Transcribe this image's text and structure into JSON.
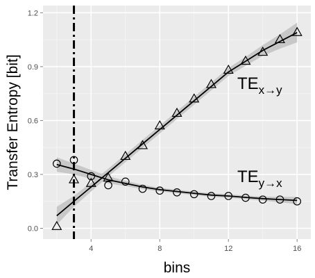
{
  "chart_data": {
    "type": "scatter",
    "xlabel": "bins",
    "ylabel": "Transfer Entropy [bit]",
    "xlim": [
      1.2,
      16.8
    ],
    "ylim": [
      -0.06,
      1.24
    ],
    "xticks": [
      4,
      8,
      12,
      16
    ],
    "yticks": [
      0.0,
      0.3,
      0.6,
      0.9,
      1.2
    ],
    "grid": true,
    "background": "#ebebeb",
    "band_color": "#c8c8c8",
    "vline": {
      "x": 3,
      "style": "dash-dot"
    },
    "series": [
      {
        "name_base": "TE",
        "name_sub": "x→y",
        "marker": "triangle",
        "points": [
          [
            2,
            0.01
          ],
          [
            3,
            0.27
          ],
          [
            4,
            0.25
          ],
          [
            5,
            0.28
          ],
          [
            6,
            0.4
          ],
          [
            7,
            0.46
          ],
          [
            8,
            0.57
          ],
          [
            9,
            0.64
          ],
          [
            10,
            0.72
          ],
          [
            11,
            0.8
          ],
          [
            12,
            0.88
          ],
          [
            13,
            0.93
          ],
          [
            14,
            0.98
          ],
          [
            15,
            1.05
          ],
          [
            16,
            1.09
          ]
        ],
        "smooth": [
          [
            2,
            0.07
          ],
          [
            3,
            0.15
          ],
          [
            4,
            0.23
          ],
          [
            5,
            0.31
          ],
          [
            6,
            0.39
          ],
          [
            7,
            0.47
          ],
          [
            8,
            0.55
          ],
          [
            9,
            0.63
          ],
          [
            10,
            0.71
          ],
          [
            11,
            0.79
          ],
          [
            12,
            0.87
          ],
          [
            13,
            0.93
          ],
          [
            14,
            0.99
          ],
          [
            15,
            1.04
          ],
          [
            16,
            1.09
          ]
        ],
        "band_width": [
          0.05,
          0.03,
          0.025,
          0.022,
          0.022,
          0.022,
          0.022,
          0.022,
          0.022,
          0.022,
          0.022,
          0.025,
          0.03,
          0.04,
          0.055
        ]
      },
      {
        "name_base": "TE",
        "name_sub": "y→x",
        "marker": "circle",
        "points": [
          [
            2,
            0.36
          ],
          [
            3,
            0.38
          ],
          [
            4,
            0.29
          ],
          [
            5,
            0.24
          ],
          [
            6,
            0.26
          ],
          [
            7,
            0.22
          ],
          [
            8,
            0.21
          ],
          [
            9,
            0.2
          ],
          [
            10,
            0.19
          ],
          [
            11,
            0.18
          ],
          [
            12,
            0.18
          ],
          [
            13,
            0.17
          ],
          [
            14,
            0.16
          ],
          [
            15,
            0.16
          ],
          [
            16,
            0.15
          ]
        ],
        "smooth": [
          [
            2,
            0.355
          ],
          [
            3,
            0.33
          ],
          [
            4,
            0.3
          ],
          [
            5,
            0.27
          ],
          [
            6,
            0.25
          ],
          [
            7,
            0.23
          ],
          [
            8,
            0.215
          ],
          [
            9,
            0.205
          ],
          [
            10,
            0.195
          ],
          [
            11,
            0.185
          ],
          [
            12,
            0.18
          ],
          [
            13,
            0.172
          ],
          [
            14,
            0.165
          ],
          [
            15,
            0.16
          ],
          [
            16,
            0.155
          ]
        ],
        "band_width": [
          0.04,
          0.03,
          0.025,
          0.02,
          0.015,
          0.012,
          0.01,
          0.01,
          0.01,
          0.01,
          0.01,
          0.01,
          0.012,
          0.015,
          0.02
        ]
      }
    ]
  }
}
